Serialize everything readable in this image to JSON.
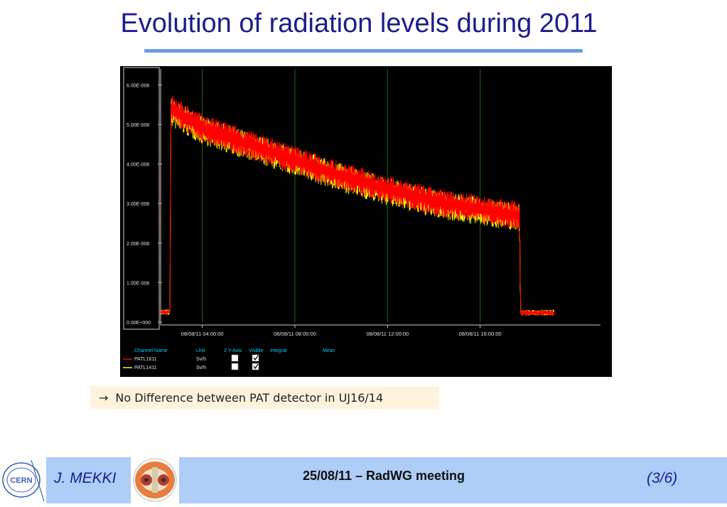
{
  "slide": {
    "title": "Evolution of radiation levels during 2011",
    "note_arrow": "→",
    "note": "No Difference between PAT detector in UJ16/14"
  },
  "footer": {
    "author": "J. MEKKI",
    "meeting": "25/08/11 – RadWG meeting",
    "page": "(3/6)",
    "cern_logo_text": "CERN"
  },
  "colors": {
    "title": "#1c1c8c",
    "accent_rule": "#6a9be8",
    "series_red": "#ff0000",
    "series_yellow": "#ffff00",
    "grid": "#1f6b1f",
    "legend_header": "#00d0ff",
    "footer_band": "#aecdf7"
  },
  "legend": {
    "headers": [
      "Channel Name",
      "Unit",
      "2 Y-Axis",
      "Visible",
      "Integral",
      "Mean"
    ],
    "rows": [
      {
        "name": "PATL1611",
        "unit": "Sv/h",
        "y2": false,
        "visible": true,
        "color": "#ff0000"
      },
      {
        "name": "PATL1411",
        "unit": "Sv/h",
        "y2": false,
        "visible": true,
        "color": "#ffff00"
      }
    ]
  },
  "chart_data": {
    "type": "line",
    "title": "",
    "xlabel": "",
    "ylabel": "",
    "ylim": [
      0,
      6.4e-06
    ],
    "y_ticks": [
      "0.00E+000",
      "1.00E-006",
      "2.00E-006",
      "3.00E-006",
      "4.00E-006",
      "5.00E-006",
      "6.00E-006"
    ],
    "y_tick_values": [
      0,
      1e-06,
      2e-06,
      3e-06,
      4e-06,
      5e-06,
      6e-06
    ],
    "x_unit": "hours since 08/08/11 00:00",
    "xlim": [
      2.2,
      21.2
    ],
    "x_ticks": [
      "08/08/11 04:00:00",
      "08/08/11 08:00:00",
      "08/08/11 12:00:00",
      "08/08/11 16:00:00"
    ],
    "x_tick_values": [
      4,
      8,
      12,
      16
    ],
    "grid": true,
    "series": [
      {
        "name": "PATL1611",
        "color": "#ff0000",
        "points": [
          [
            2.2,
            2.5e-07
          ],
          [
            2.6,
            2.5e-07
          ],
          [
            2.65,
            5.4e-06
          ],
          [
            4,
            4.9e-06
          ],
          [
            6,
            4.5e-06
          ],
          [
            8,
            4.1e-06
          ],
          [
            10,
            3.7e-06
          ],
          [
            12,
            3.35e-06
          ],
          [
            14,
            3.05e-06
          ],
          [
            16,
            2.85e-06
          ],
          [
            17.7,
            2.7e-06
          ],
          [
            17.75,
            2.4e-07
          ],
          [
            19.2,
            2.4e-07
          ]
        ],
        "band": 6e-07
      },
      {
        "name": "PATL1411",
        "color": "#ffff00",
        "points": [
          [
            2.2,
            2.5e-07
          ],
          [
            2.6,
            2.5e-07
          ],
          [
            2.65,
            5.3e-06
          ],
          [
            4,
            4.85e-06
          ],
          [
            6,
            4.45e-06
          ],
          [
            8,
            4.05e-06
          ],
          [
            10,
            3.65e-06
          ],
          [
            12,
            3.3e-06
          ],
          [
            14,
            3e-06
          ],
          [
            16,
            2.8e-06
          ],
          [
            17.7,
            2.65e-06
          ],
          [
            17.75,
            2.4e-07
          ],
          [
            19.2,
            2.4e-07
          ]
        ],
        "band": 6e-07
      }
    ]
  }
}
